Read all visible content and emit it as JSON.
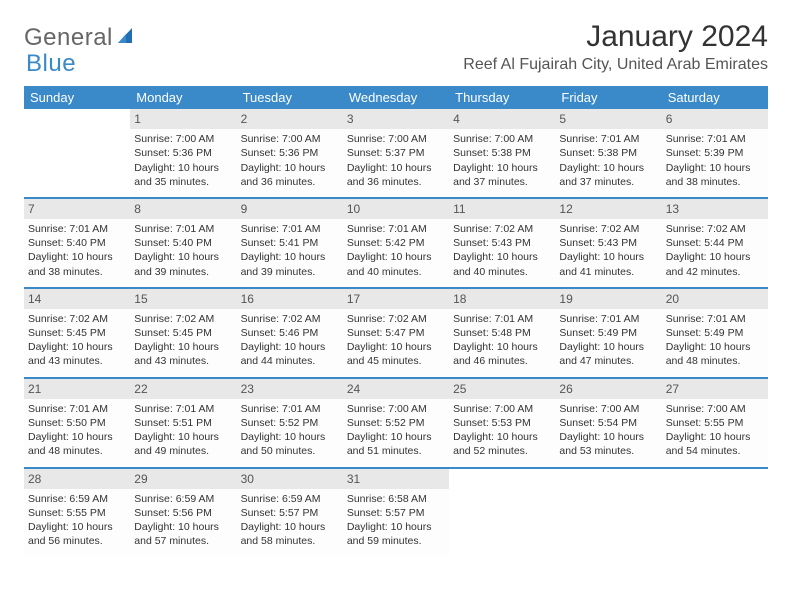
{
  "brand": {
    "text1": "General",
    "text2": "Blue",
    "color_gray": "#666666",
    "color_blue": "#3a89c9"
  },
  "title": "January 2024",
  "location": "Reef Al Fujairah City, United Arab Emirates",
  "colors": {
    "header_bg": "#3a89c9",
    "header_text": "#ffffff",
    "row_border": "#3a89c9",
    "daynum_bg": "#e8e8e8",
    "background": "#ffffff"
  },
  "days_of_week": [
    "Sunday",
    "Monday",
    "Tuesday",
    "Wednesday",
    "Thursday",
    "Friday",
    "Saturday"
  ],
  "weeks": [
    [
      {
        "num": "",
        "sunrise": "",
        "sunset": "",
        "daylight": ""
      },
      {
        "num": "1",
        "sunrise": "Sunrise: 7:00 AM",
        "sunset": "Sunset: 5:36 PM",
        "daylight": "Daylight: 10 hours and 35 minutes."
      },
      {
        "num": "2",
        "sunrise": "Sunrise: 7:00 AM",
        "sunset": "Sunset: 5:36 PM",
        "daylight": "Daylight: 10 hours and 36 minutes."
      },
      {
        "num": "3",
        "sunrise": "Sunrise: 7:00 AM",
        "sunset": "Sunset: 5:37 PM",
        "daylight": "Daylight: 10 hours and 36 minutes."
      },
      {
        "num": "4",
        "sunrise": "Sunrise: 7:00 AM",
        "sunset": "Sunset: 5:38 PM",
        "daylight": "Daylight: 10 hours and 37 minutes."
      },
      {
        "num": "5",
        "sunrise": "Sunrise: 7:01 AM",
        "sunset": "Sunset: 5:38 PM",
        "daylight": "Daylight: 10 hours and 37 minutes."
      },
      {
        "num": "6",
        "sunrise": "Sunrise: 7:01 AM",
        "sunset": "Sunset: 5:39 PM",
        "daylight": "Daylight: 10 hours and 38 minutes."
      }
    ],
    [
      {
        "num": "7",
        "sunrise": "Sunrise: 7:01 AM",
        "sunset": "Sunset: 5:40 PM",
        "daylight": "Daylight: 10 hours and 38 minutes."
      },
      {
        "num": "8",
        "sunrise": "Sunrise: 7:01 AM",
        "sunset": "Sunset: 5:40 PM",
        "daylight": "Daylight: 10 hours and 39 minutes."
      },
      {
        "num": "9",
        "sunrise": "Sunrise: 7:01 AM",
        "sunset": "Sunset: 5:41 PM",
        "daylight": "Daylight: 10 hours and 39 minutes."
      },
      {
        "num": "10",
        "sunrise": "Sunrise: 7:01 AM",
        "sunset": "Sunset: 5:42 PM",
        "daylight": "Daylight: 10 hours and 40 minutes."
      },
      {
        "num": "11",
        "sunrise": "Sunrise: 7:02 AM",
        "sunset": "Sunset: 5:43 PM",
        "daylight": "Daylight: 10 hours and 40 minutes."
      },
      {
        "num": "12",
        "sunrise": "Sunrise: 7:02 AM",
        "sunset": "Sunset: 5:43 PM",
        "daylight": "Daylight: 10 hours and 41 minutes."
      },
      {
        "num": "13",
        "sunrise": "Sunrise: 7:02 AM",
        "sunset": "Sunset: 5:44 PM",
        "daylight": "Daylight: 10 hours and 42 minutes."
      }
    ],
    [
      {
        "num": "14",
        "sunrise": "Sunrise: 7:02 AM",
        "sunset": "Sunset: 5:45 PM",
        "daylight": "Daylight: 10 hours and 43 minutes."
      },
      {
        "num": "15",
        "sunrise": "Sunrise: 7:02 AM",
        "sunset": "Sunset: 5:45 PM",
        "daylight": "Daylight: 10 hours and 43 minutes."
      },
      {
        "num": "16",
        "sunrise": "Sunrise: 7:02 AM",
        "sunset": "Sunset: 5:46 PM",
        "daylight": "Daylight: 10 hours and 44 minutes."
      },
      {
        "num": "17",
        "sunrise": "Sunrise: 7:02 AM",
        "sunset": "Sunset: 5:47 PM",
        "daylight": "Daylight: 10 hours and 45 minutes."
      },
      {
        "num": "18",
        "sunrise": "Sunrise: 7:01 AM",
        "sunset": "Sunset: 5:48 PM",
        "daylight": "Daylight: 10 hours and 46 minutes."
      },
      {
        "num": "19",
        "sunrise": "Sunrise: 7:01 AM",
        "sunset": "Sunset: 5:49 PM",
        "daylight": "Daylight: 10 hours and 47 minutes."
      },
      {
        "num": "20",
        "sunrise": "Sunrise: 7:01 AM",
        "sunset": "Sunset: 5:49 PM",
        "daylight": "Daylight: 10 hours and 48 minutes."
      }
    ],
    [
      {
        "num": "21",
        "sunrise": "Sunrise: 7:01 AM",
        "sunset": "Sunset: 5:50 PM",
        "daylight": "Daylight: 10 hours and 48 minutes."
      },
      {
        "num": "22",
        "sunrise": "Sunrise: 7:01 AM",
        "sunset": "Sunset: 5:51 PM",
        "daylight": "Daylight: 10 hours and 49 minutes."
      },
      {
        "num": "23",
        "sunrise": "Sunrise: 7:01 AM",
        "sunset": "Sunset: 5:52 PM",
        "daylight": "Daylight: 10 hours and 50 minutes."
      },
      {
        "num": "24",
        "sunrise": "Sunrise: 7:00 AM",
        "sunset": "Sunset: 5:52 PM",
        "daylight": "Daylight: 10 hours and 51 minutes."
      },
      {
        "num": "25",
        "sunrise": "Sunrise: 7:00 AM",
        "sunset": "Sunset: 5:53 PM",
        "daylight": "Daylight: 10 hours and 52 minutes."
      },
      {
        "num": "26",
        "sunrise": "Sunrise: 7:00 AM",
        "sunset": "Sunset: 5:54 PM",
        "daylight": "Daylight: 10 hours and 53 minutes."
      },
      {
        "num": "27",
        "sunrise": "Sunrise: 7:00 AM",
        "sunset": "Sunset: 5:55 PM",
        "daylight": "Daylight: 10 hours and 54 minutes."
      }
    ],
    [
      {
        "num": "28",
        "sunrise": "Sunrise: 6:59 AM",
        "sunset": "Sunset: 5:55 PM",
        "daylight": "Daylight: 10 hours and 56 minutes."
      },
      {
        "num": "29",
        "sunrise": "Sunrise: 6:59 AM",
        "sunset": "Sunset: 5:56 PM",
        "daylight": "Daylight: 10 hours and 57 minutes."
      },
      {
        "num": "30",
        "sunrise": "Sunrise: 6:59 AM",
        "sunset": "Sunset: 5:57 PM",
        "daylight": "Daylight: 10 hours and 58 minutes."
      },
      {
        "num": "31",
        "sunrise": "Sunrise: 6:58 AM",
        "sunset": "Sunset: 5:57 PM",
        "daylight": "Daylight: 10 hours and 59 minutes."
      },
      {
        "num": "",
        "sunrise": "",
        "sunset": "",
        "daylight": ""
      },
      {
        "num": "",
        "sunrise": "",
        "sunset": "",
        "daylight": ""
      },
      {
        "num": "",
        "sunrise": "",
        "sunset": "",
        "daylight": ""
      }
    ]
  ]
}
